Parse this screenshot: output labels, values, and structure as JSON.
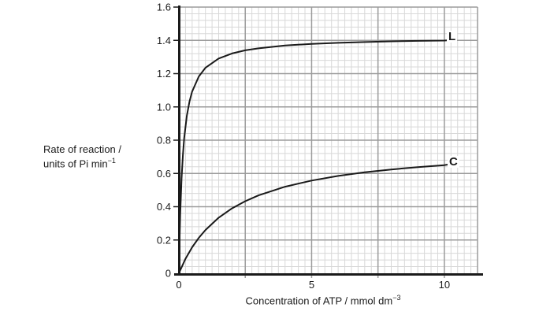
{
  "figure": {
    "ylabel_line1": "Rate of reaction /",
    "ylabel_line2_base": "units of Pi min",
    "ylabel_line2_sup": "−1",
    "xlabel_base": "Concentration of ATP / mmol dm",
    "xlabel_sup": "−3"
  },
  "chart_data": {
    "type": "line",
    "title": "",
    "xlabel": "Concentration of ATP / mmol dm^−3",
    "ylabel": "Rate of reaction / units of Pi min^−1",
    "xlim": [
      0,
      11.25
    ],
    "ylim": [
      0,
      1.6
    ],
    "grid": true,
    "minor_step_x": 0.25,
    "minor_step_y": 0.04,
    "x_major_gridlines": [
      2.5,
      5,
      7.5,
      10
    ],
    "x_ticks": [
      0,
      5,
      10
    ],
    "x_tick_labels": [
      "0",
      "5",
      "10"
    ],
    "y_major_step": 0.2,
    "y_tick_labels": [
      "0",
      "0.2",
      "0.4",
      "0.6",
      "0.8",
      "1.0",
      "1.2",
      "1.4",
      "1.6"
    ],
    "legend_position": "right-of-curve-ends",
    "series": [
      {
        "name": "L",
        "x": [
          0,
          0.02,
          0.05,
          0.1,
          0.15,
          0.2,
          0.3,
          0.4,
          0.5,
          0.75,
          1,
          1.5,
          2,
          2.5,
          3,
          4,
          5,
          6,
          7,
          8,
          9,
          10,
          10.1
        ],
        "y": [
          0,
          0.167,
          0.355,
          0.568,
          0.71,
          0.811,
          0.947,
          1.033,
          1.092,
          1.183,
          1.235,
          1.291,
          1.321,
          1.34,
          1.352,
          1.369,
          1.379,
          1.385,
          1.39,
          1.394,
          1.397,
          1.399,
          1.4
        ]
      },
      {
        "name": "C",
        "x": [
          0,
          0.25,
          0.5,
          0.75,
          1,
          1.5,
          2,
          2.5,
          3,
          4,
          5,
          6,
          7,
          8,
          9,
          10,
          10.1
        ],
        "y": [
          0,
          0.087,
          0.156,
          0.213,
          0.26,
          0.334,
          0.39,
          0.433,
          0.468,
          0.52,
          0.557,
          0.585,
          0.607,
          0.624,
          0.638,
          0.65,
          0.653
        ]
      }
    ]
  },
  "colors": {
    "curve": "#1a1a1a",
    "axis": "#1a1a1a",
    "grid_minor": "#d8d8d8",
    "grid_major": "#9b9b9b",
    "text": "#1a1a1a"
  }
}
